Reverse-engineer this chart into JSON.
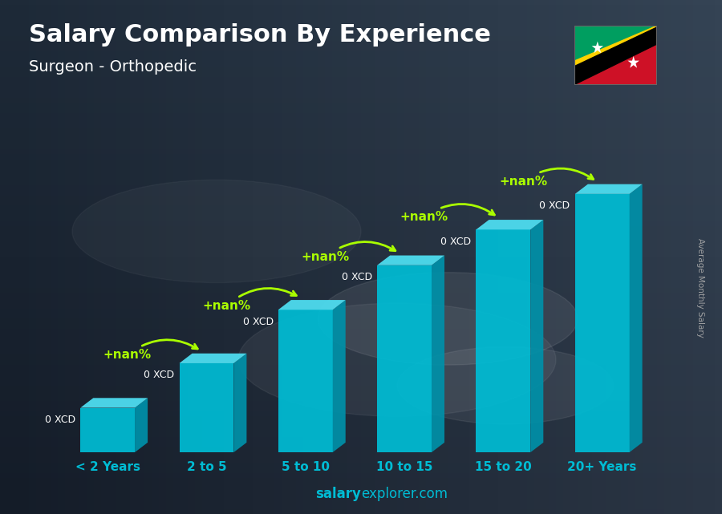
{
  "title": "Salary Comparison By Experience",
  "subtitle": "Surgeon - Orthopedic",
  "categories": [
    "< 2 Years",
    "2 to 5",
    "5 to 10",
    "10 to 15",
    "15 to 20",
    "20+ Years"
  ],
  "salary_labels": [
    "0 XCD",
    "0 XCD",
    "0 XCD",
    "0 XCD",
    "0 XCD",
    "0 XCD"
  ],
  "pct_labels": [
    "+nan%",
    "+nan%",
    "+nan%",
    "+nan%",
    "+nan%"
  ],
  "ylabel": "Average Monthly Salary",
  "footer_bold": "salary",
  "footer_normal": "explorer.com",
  "bar_color_front": "#00bcd4",
  "bar_color_top": "#4dd9ec",
  "bar_color_side": "#0090a8",
  "title_color": "#ffffff",
  "subtitle_color": "#ffffff",
  "salary_label_color": "#ffffff",
  "pct_label_color": "#aaff00",
  "arrow_color": "#aaff00",
  "xticklabel_color": "#00bcd4",
  "footer_color": "#00bcd4",
  "bar_heights": [
    1.0,
    2.0,
    3.2,
    4.2,
    5.0,
    5.8
  ],
  "y_max": 7.5,
  "bg_dark": "#1e2a38",
  "bg_mid": "#2a3d52"
}
